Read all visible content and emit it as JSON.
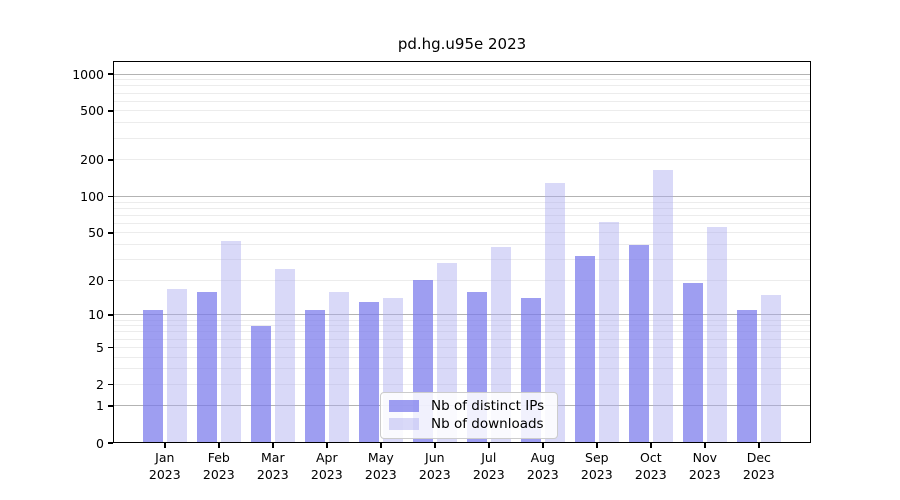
{
  "chart_data": {
    "type": "bar",
    "title": "pd.hg.u95e 2023",
    "year_label": "2023",
    "categories": [
      "Jan",
      "Feb",
      "Mar",
      "Apr",
      "May",
      "Jun",
      "Jul",
      "Aug",
      "Sep",
      "Oct",
      "Nov",
      "Dec"
    ],
    "series": [
      {
        "name": "Nb of distinct IPs",
        "color": "rgba(120,120,235,0.72)",
        "values": [
          11,
          16,
          8,
          11,
          13,
          20,
          16,
          14,
          32,
          40,
          19,
          11
        ]
      },
      {
        "name": "Nb of downloads",
        "color": "rgba(170,170,240,0.45)",
        "values": [
          17,
          43,
          25,
          16,
          14,
          28,
          38,
          130,
          62,
          165,
          56,
          15
        ]
      }
    ],
    "y_axis": {
      "scale": "log10(1+x)",
      "tick_values": [
        0,
        1,
        2,
        5,
        10,
        20,
        50,
        100,
        200,
        500,
        1000
      ],
      "tick_labels": [
        "0",
        "1",
        "2",
        "5",
        "10",
        "20",
        "50",
        "100",
        "200",
        "500",
        "1000"
      ],
      "minor_grid_values": [
        2,
        3,
        4,
        5,
        6,
        7,
        8,
        9,
        20,
        30,
        40,
        50,
        60,
        70,
        80,
        90,
        200,
        300,
        400,
        500,
        600,
        700,
        800,
        900
      ],
      "major_grid_values": [
        1,
        10,
        100,
        1000
      ]
    },
    "legend": {
      "items": [
        "Nb of distinct IPs",
        "Nb of downloads"
      ],
      "position": "bottom-center-inside"
    },
    "colors": {
      "grid_major": "#b3b3b3",
      "grid_minor": "#ececec",
      "axis": "#000000",
      "text": "#000000",
      "legend_bg": "rgba(255,255,255,0.85)",
      "legend_border": "#cccccc"
    }
  }
}
